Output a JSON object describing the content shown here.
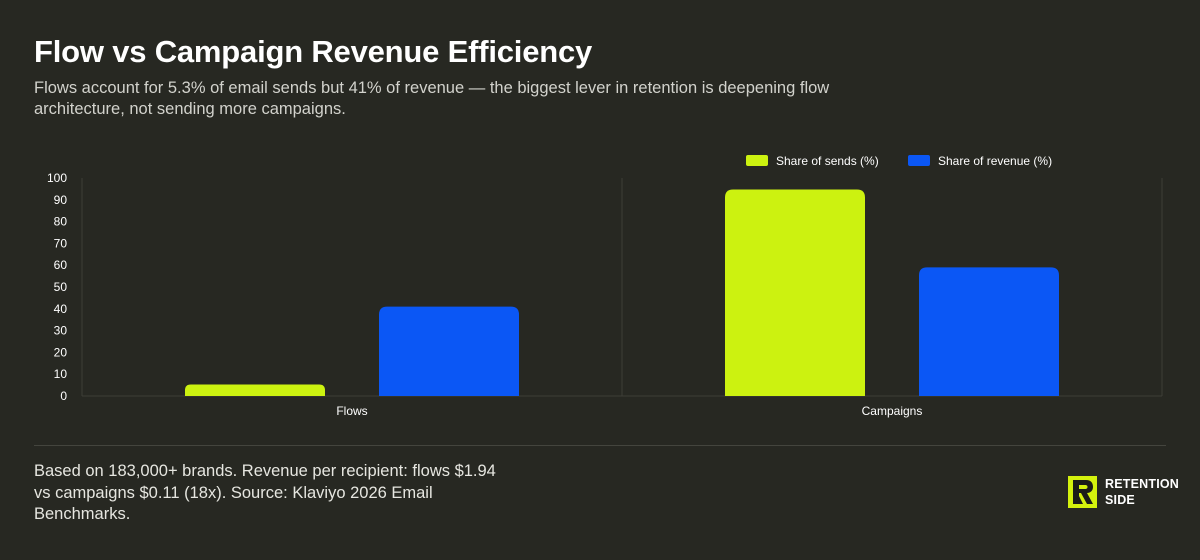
{
  "header": {
    "title": "Flow vs Campaign Revenue Efficiency",
    "subtitle": "Flows account for 5.3% of email sends but 41% of revenue — the biggest lever in retention is deepening flow architecture, not sending more campaigns."
  },
  "footer": {
    "note": "Based on 183,000+ brands. Revenue per recipient: flows $1.94 vs campaigns $0.11 (18x). Source: Klaviyo 2026 Email Benchmarks.",
    "brand_line1": "RETENTION",
    "brand_line2": "SIDE",
    "brand_logo_icon": "retention-side-logo-icon"
  },
  "colors": {
    "background": "#272822",
    "sends": "#ccf210",
    "revenue": "#0b57f5",
    "grid": "#3d3e37",
    "brand_accent": "#d4f20d"
  },
  "chart_data": {
    "type": "bar",
    "categories": [
      "Flows",
      "Campaigns"
    ],
    "series": [
      {
        "name": "Share of sends (%)",
        "values": [
          5.3,
          94.7
        ]
      },
      {
        "name": "Share of revenue (%)",
        "values": [
          41,
          59
        ]
      }
    ],
    "ylim": [
      0,
      100
    ],
    "yticks": [
      0,
      10,
      20,
      30,
      40,
      50,
      60,
      70,
      80,
      90,
      100
    ],
    "grid": "vertical category separators",
    "legend": "top-right",
    "xlabel": "",
    "ylabel": ""
  }
}
